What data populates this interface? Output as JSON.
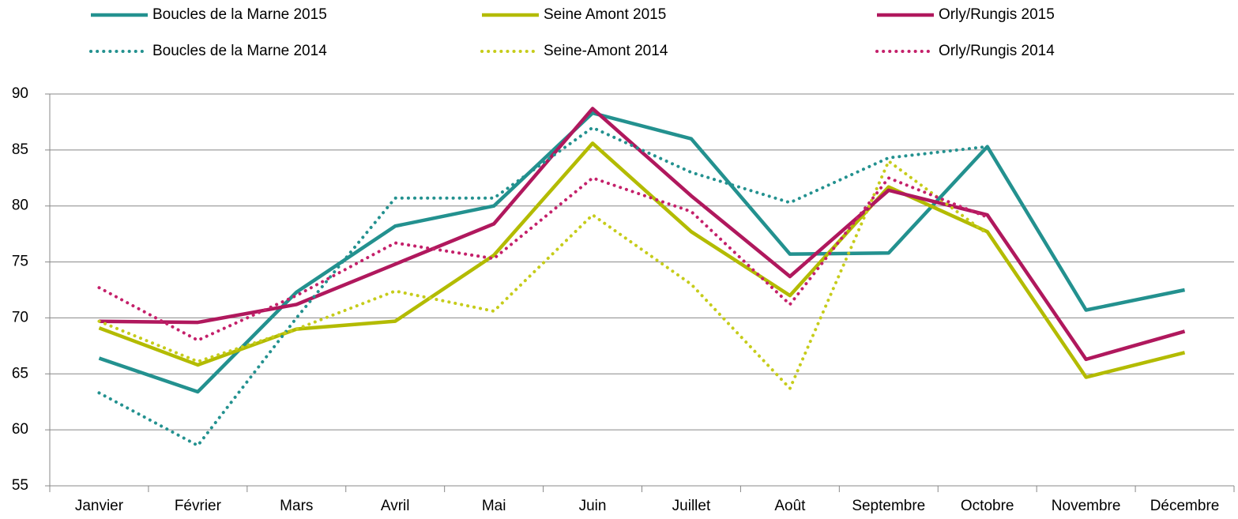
{
  "chart_data": {
    "type": "line",
    "categories": [
      "Janvier",
      "Février",
      "Mars",
      "Avril",
      "Mai",
      "Juin",
      "Juillet",
      "Août",
      "Septembre",
      "Octobre",
      "Novembre",
      "Décembre"
    ],
    "series": [
      {
        "name": "Boucles de la Marne 2015",
        "color": "#23918f",
        "style": "solid",
        "values": [
          66.4,
          63.4,
          72.3,
          78.2,
          80,
          88.3,
          86,
          75.7,
          75.8,
          85.3,
          70.7,
          72.5
        ]
      },
      {
        "name": "Seine Amont 2015",
        "color": "#b3bb00",
        "style": "solid",
        "values": [
          69.1,
          65.8,
          69,
          69.7,
          75.6,
          85.6,
          77.7,
          72,
          81.7,
          77.7,
          64.7,
          66.9
        ]
      },
      {
        "name": "Orly/Rungis 2015",
        "color": "#b0185d",
        "style": "solid",
        "values": [
          69.7,
          69.6,
          71.2,
          74.8,
          78.4,
          88.7,
          80.9,
          73.7,
          81.4,
          79.2,
          66.3,
          68.8
        ]
      },
      {
        "name": "Boucles de la Marne 2014",
        "color": "#23918f",
        "style": "dotted",
        "values": [
          63.3,
          58.6,
          70,
          80.7,
          80.7,
          87,
          83,
          80.3,
          84.3,
          85.3,
          null,
          null
        ]
      },
      {
        "name": "Seine-Amont 2014",
        "color": "#c6cc1a",
        "style": "dotted",
        "values": [
          69.7,
          66.1,
          69,
          72.4,
          70.6,
          79.2,
          73,
          63.7,
          84,
          77.5,
          null,
          null
        ]
      },
      {
        "name": "Orly/Rungis 2014",
        "color": "#c4206a",
        "style": "dotted",
        "values": [
          72.7,
          68,
          72,
          76.7,
          75.3,
          82.5,
          79.5,
          71.2,
          82.5,
          79,
          null,
          null
        ]
      }
    ],
    "ylim": [
      55,
      90
    ],
    "yticks": [
      55,
      60,
      65,
      70,
      75,
      80,
      85,
      90
    ],
    "grid": true
  }
}
